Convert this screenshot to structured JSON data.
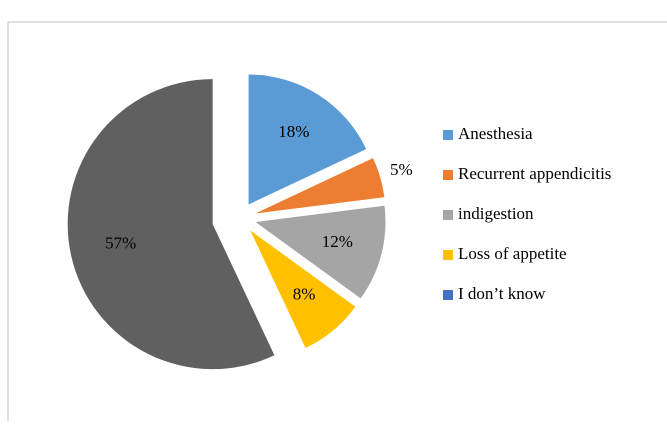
{
  "chart_data": {
    "type": "pie",
    "categories": [
      "Anesthesia",
      "Recurrent appendicitis",
      "indigestion",
      "Loss of appetite",
      "I don’t know"
    ],
    "values": [
      18,
      5,
      12,
      8,
      57
    ],
    "value_labels": [
      "18%",
      "5%",
      "12%",
      "8%",
      "57%"
    ],
    "colors": [
      "#5b9bd5",
      "#ed7d31",
      "#a5a5a5",
      "#ffc000",
      "#606060"
    ],
    "legend_colors": [
      "#5b9bd5",
      "#ed7d31",
      "#a5a5a5",
      "#ffc000",
      "#4472c4"
    ],
    "legend": "right"
  }
}
